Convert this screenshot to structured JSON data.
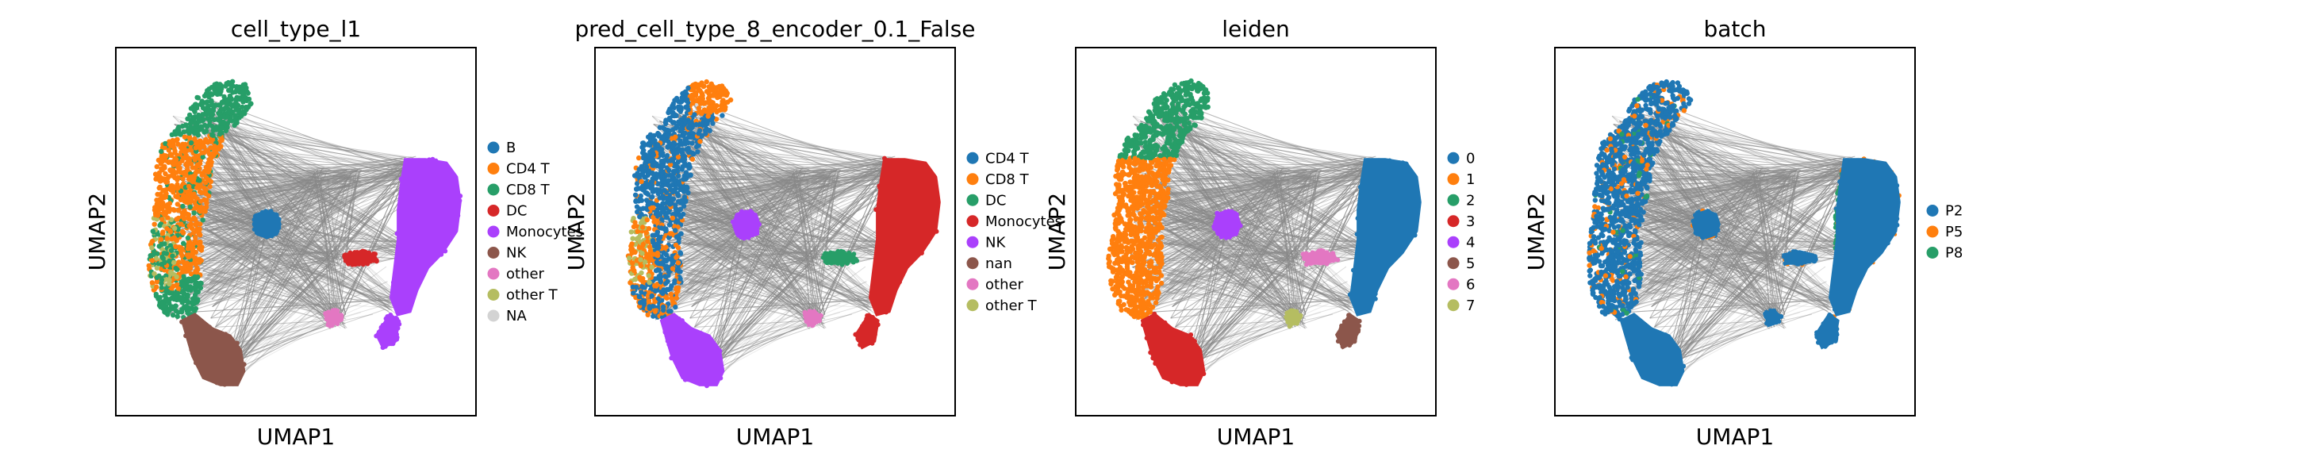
{
  "figure": {
    "background": "#ffffff"
  },
  "chart_data": [
    {
      "type": "scatter",
      "title": "cell_type_l1",
      "xlabel": "UMAP1",
      "ylabel": "UMAP2",
      "grid": false,
      "legend_position": "right",
      "legend": [
        {
          "label": "B",
          "color": "#1f77b4"
        },
        {
          "label": "CD4 T",
          "color": "#ff7f0e"
        },
        {
          "label": "CD8 T",
          "color": "#279e68"
        },
        {
          "label": "DC",
          "color": "#d62728"
        },
        {
          "label": "Monocytes",
          "color": "#aa40fc"
        },
        {
          "label": "NK",
          "color": "#8c564b"
        },
        {
          "label": "other",
          "color": "#e377c2"
        },
        {
          "label": "other T",
          "color": "#b5bd61"
        },
        {
          "label": "NA",
          "color": "#d3d3d3"
        }
      ]
    },
    {
      "type": "scatter",
      "title": "pred_cell_type_8_encoder_0.1_False",
      "xlabel": "UMAP1",
      "ylabel": "UMAP2",
      "grid": false,
      "legend_position": "right",
      "legend": [
        {
          "label": "CD4 T",
          "color": "#1f77b4"
        },
        {
          "label": "CD8 T",
          "color": "#ff7f0e"
        },
        {
          "label": "DC",
          "color": "#279e68"
        },
        {
          "label": "Monocytes",
          "color": "#d62728"
        },
        {
          "label": "NK",
          "color": "#aa40fc"
        },
        {
          "label": "nan",
          "color": "#8c564b"
        },
        {
          "label": "other",
          "color": "#e377c2"
        },
        {
          "label": "other T",
          "color": "#b5bd61"
        }
      ]
    },
    {
      "type": "scatter",
      "title": "leiden",
      "xlabel": "UMAP1",
      "ylabel": "UMAP2",
      "grid": false,
      "legend_position": "right",
      "legend": [
        {
          "label": "0",
          "color": "#1f77b4"
        },
        {
          "label": "1",
          "color": "#ff7f0e"
        },
        {
          "label": "2",
          "color": "#279e68"
        },
        {
          "label": "3",
          "color": "#d62728"
        },
        {
          "label": "4",
          "color": "#aa40fc"
        },
        {
          "label": "5",
          "color": "#8c564b"
        },
        {
          "label": "6",
          "color": "#e377c2"
        },
        {
          "label": "7",
          "color": "#b5bd61"
        }
      ]
    },
    {
      "type": "scatter",
      "title": "batch",
      "xlabel": "UMAP1",
      "ylabel": "UMAP2",
      "grid": false,
      "legend_position": "right",
      "legend": [
        {
          "label": "P2",
          "color": "#1f77b4"
        },
        {
          "label": "P5",
          "color": "#ff7f0e"
        },
        {
          "label": "P8",
          "color": "#279e68"
        }
      ]
    }
  ]
}
